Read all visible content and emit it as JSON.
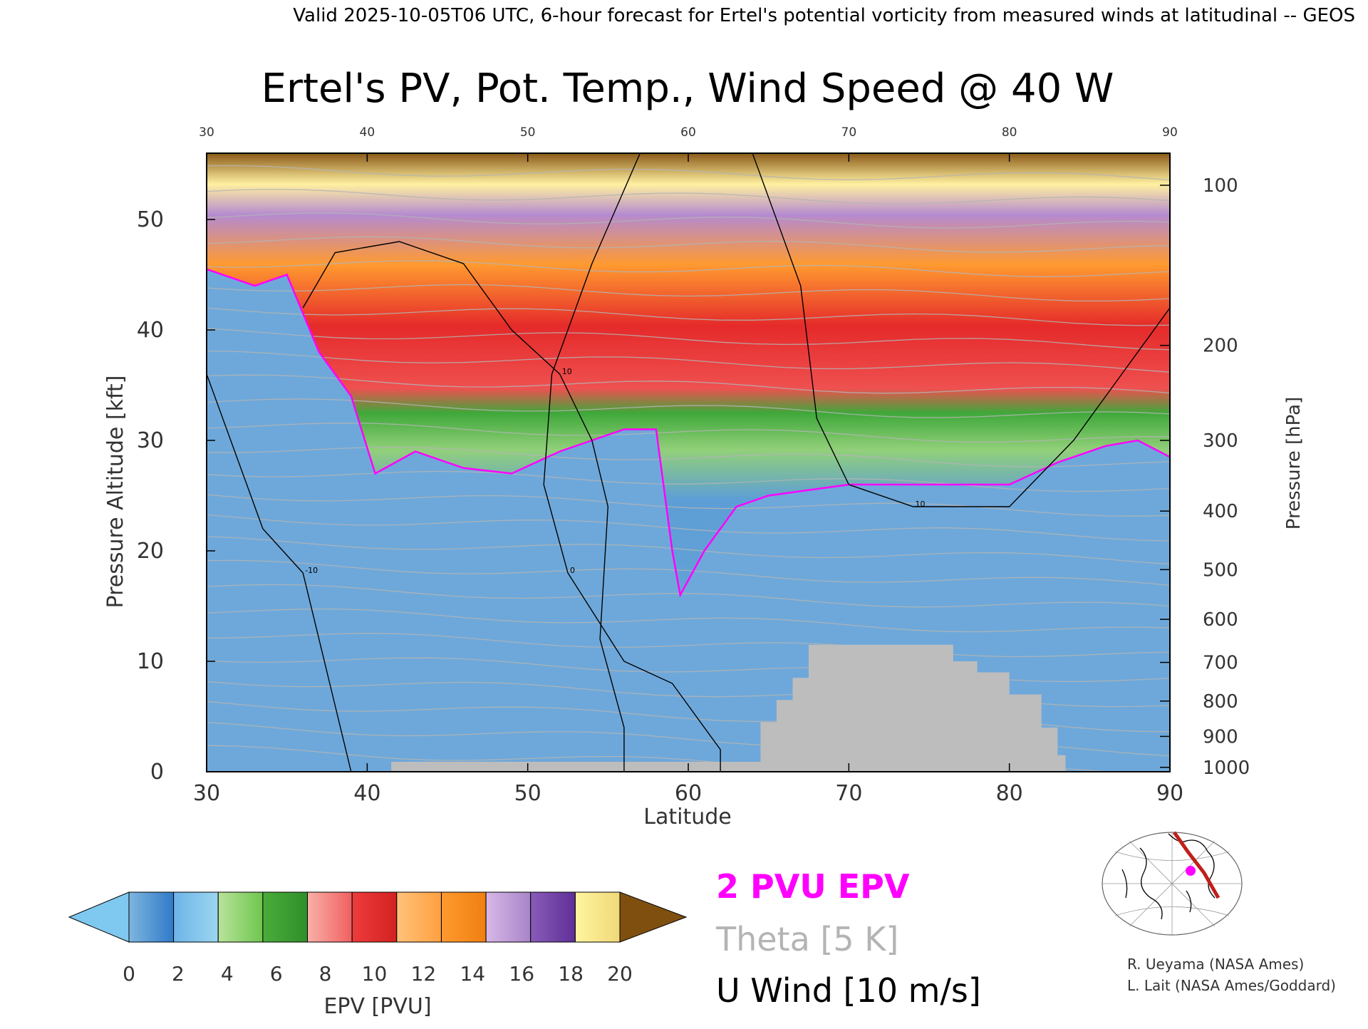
{
  "header": "Valid 2025-10-05T06 UTC, 6-hour forecast for Ertel's potential vorticity from measured winds at latitudinal -- GEOS",
  "chart_data": {
    "type": "heatmap",
    "title": "Ertel's PV, Pot. Temp., Wind Speed @ 40 W",
    "xlabel": "Latitude",
    "ylabel_left": "Pressure Altitude [kft]",
    "ylabel_right": "Pressure [hPa]",
    "xlim": [
      30,
      90
    ],
    "ylim": [
      0,
      56
    ],
    "x_ticks": [
      30,
      40,
      50,
      60,
      70,
      80,
      90
    ],
    "y_ticks": [
      0,
      10,
      20,
      30,
      40,
      50
    ],
    "pressure_ticks": [
      {
        "hpa": 100,
        "kft": 53.1
      },
      {
        "hpa": 200,
        "kft": 38.6
      },
      {
        "hpa": 300,
        "kft": 30.0
      },
      {
        "hpa": 400,
        "kft": 23.6
      },
      {
        "hpa": 500,
        "kft": 18.3
      },
      {
        "hpa": 600,
        "kft": 13.8
      },
      {
        "hpa": 700,
        "kft": 9.9
      },
      {
        "hpa": 800,
        "kft": 6.4
      },
      {
        "hpa": 900,
        "kft": 3.2
      },
      {
        "hpa": 1000,
        "kft": 0.4
      }
    ],
    "tropopause_2pvu": [
      [
        30,
        45.5
      ],
      [
        33,
        44
      ],
      [
        35,
        45
      ],
      [
        37,
        38
      ],
      [
        39,
        34
      ],
      [
        40.5,
        27
      ],
      [
        43,
        29
      ],
      [
        46,
        27.5
      ],
      [
        49,
        27
      ],
      [
        52,
        29
      ],
      [
        56,
        31
      ],
      [
        58,
        31
      ],
      [
        59,
        20
      ],
      [
        59.5,
        16
      ],
      [
        61,
        20
      ],
      [
        63,
        24
      ],
      [
        65,
        25
      ],
      [
        70,
        26
      ],
      [
        75,
        26
      ],
      [
        80,
        26
      ],
      [
        83,
        28
      ],
      [
        86,
        29.5
      ],
      [
        88,
        30
      ],
      [
        90,
        28.5
      ]
    ],
    "terrain": [
      [
        41.5,
        0.9
      ],
      [
        64.5,
        0.9
      ],
      [
        64.5,
        4.5
      ],
      [
        65.5,
        4.5
      ],
      [
        65.5,
        6.5
      ],
      [
        66.5,
        6.5
      ],
      [
        66.5,
        8.5
      ],
      [
        67.5,
        8.5
      ],
      [
        67.5,
        11.5
      ],
      [
        76.5,
        11.5
      ],
      [
        76.5,
        10
      ],
      [
        78,
        10
      ],
      [
        78,
        9
      ],
      [
        80,
        9
      ],
      [
        80,
        7
      ],
      [
        82,
        7
      ],
      [
        82,
        4
      ],
      [
        83,
        4
      ],
      [
        83,
        1.5
      ],
      [
        83.5,
        1.5
      ],
      [
        83.5,
        0
      ]
    ],
    "wind_contours": [
      {
        "label": "10",
        "points": [
          [
            36,
            42
          ],
          [
            38,
            47
          ],
          [
            42,
            48
          ],
          [
            46,
            46
          ],
          [
            49,
            40
          ],
          [
            52,
            36
          ],
          [
            54,
            30
          ],
          [
            55,
            24
          ],
          [
            54.5,
            12
          ],
          [
            56,
            4
          ],
          [
            56,
            0
          ]
        ]
      },
      {
        "label": "0",
        "points": [
          [
            57,
            56
          ],
          [
            54,
            46
          ],
          [
            51.5,
            36
          ],
          [
            51,
            26
          ],
          [
            52.5,
            18
          ],
          [
            56,
            10
          ],
          [
            59,
            8
          ],
          [
            62,
            2
          ],
          [
            62,
            0
          ]
        ]
      },
      {
        "label": "10",
        "points": [
          [
            64,
            56
          ],
          [
            67,
            44
          ],
          [
            68,
            32
          ],
          [
            70,
            26
          ],
          [
            74,
            24
          ],
          [
            80,
            24
          ],
          [
            84,
            30
          ],
          [
            87,
            36
          ],
          [
            90,
            42
          ]
        ]
      },
      {
        "label": "-10",
        "points": [
          [
            30,
            36
          ],
          [
            32,
            28
          ],
          [
            33.5,
            22
          ],
          [
            36,
            18
          ],
          [
            38,
            6
          ],
          [
            39,
            0
          ]
        ]
      }
    ],
    "colorbar": {
      "label": "EPV [PVU]",
      "ticks": [
        0,
        2,
        4,
        6,
        8,
        10,
        12,
        14,
        16,
        18,
        20
      ],
      "under_color": "#7fc8f0",
      "over_color": "#7f4f10",
      "segments": [
        [
          "#7fb5e0",
          "#2f7ac8"
        ],
        [
          "#6cb4e8",
          "#9cd6f0"
        ],
        [
          "#b8e39a",
          "#6fc64f"
        ],
        [
          "#4aad3a",
          "#2f8f2a"
        ],
        [
          "#f8b0a8",
          "#f06060"
        ],
        [
          "#ee3b3b",
          "#d32222"
        ],
        [
          "#ffc27a",
          "#ffa040"
        ],
        [
          "#ff9a30",
          "#f07f10"
        ],
        [
          "#d8b8e8",
          "#a884c8"
        ],
        [
          "#8a5cb8",
          "#5f2f98"
        ],
        [
          "#fff5a0",
          "#f0d878"
        ]
      ]
    }
  },
  "legend": {
    "epv": "2 PVU EPV",
    "epv_color": "#ff00ff",
    "theta": "Theta [5 K]",
    "theta_color": "#b4b4b4",
    "uwind": "U Wind [10 m/s]"
  },
  "credits": {
    "line1": "R. Ueyama (NASA Ames)",
    "line2": "L. Lait (NASA Ames/Goddard)"
  }
}
